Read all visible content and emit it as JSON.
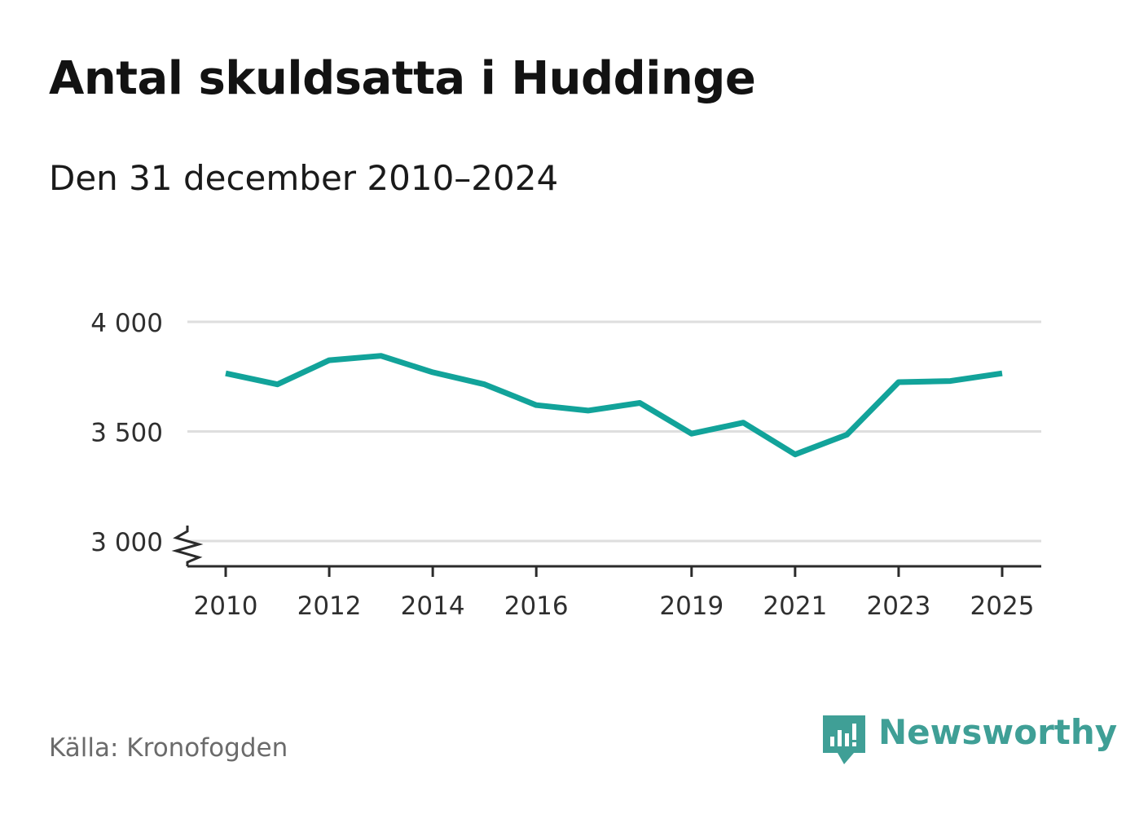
{
  "title": "Antal skuldsatta i Huddinge",
  "subtitle": "Den 31 december 2010–2024",
  "source": "Källa: Kronofogden",
  "brand": "Newsworthy",
  "colors": {
    "line": "#12a39a",
    "grid": "#dedede",
    "axis": "#2b2b2b",
    "brand": "#3f9f96"
  },
  "chart_data": {
    "type": "line",
    "title": "Antal skuldsatta i Huddinge",
    "subtitle": "Den 31 december 2010–2024",
    "xlabel": "",
    "ylabel": "",
    "xlim": [
      2010,
      2025
    ],
    "ylim": [
      3000,
      4000
    ],
    "y_axis_break": true,
    "grid": true,
    "x_ticks": [
      {
        "value": 2010,
        "label": "2010"
      },
      {
        "value": 2012,
        "label": "2012"
      },
      {
        "value": 2014,
        "label": "2014"
      },
      {
        "value": 2016,
        "label": "2016"
      },
      {
        "value": 2019,
        "label": "2019"
      },
      {
        "value": 2021,
        "label": "2021"
      },
      {
        "value": 2023,
        "label": "2023"
      },
      {
        "value": 2025,
        "label": "2025"
      }
    ],
    "y_ticks": [
      {
        "value": 3000,
        "label": "3 000"
      },
      {
        "value": 3500,
        "label": "3 500"
      },
      {
        "value": 4000,
        "label": "4 000"
      }
    ],
    "series": [
      {
        "name": "Antal skuldsatta",
        "x": [
          2010,
          2011,
          2012,
          2013,
          2014,
          2015,
          2016,
          2017,
          2018,
          2019,
          2020,
          2021,
          2022,
          2023,
          2024,
          2025
        ],
        "values": [
          3765,
          3715,
          3825,
          3845,
          3770,
          3715,
          3620,
          3595,
          3630,
          3490,
          3540,
          3395,
          3485,
          3725,
          3730,
          3765
        ]
      }
    ]
  }
}
